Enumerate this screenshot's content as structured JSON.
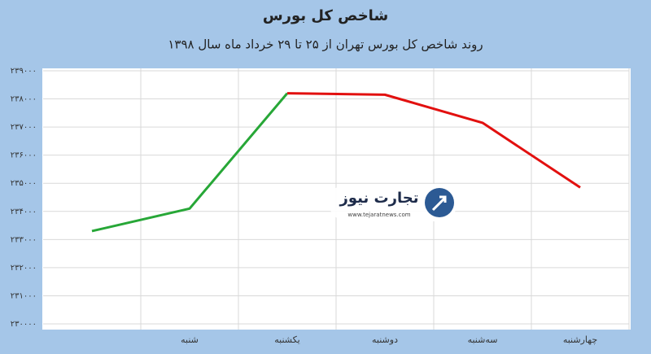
{
  "chart_data": {
    "type": "line",
    "title": "شاخص کل بورس",
    "subtitle": "روند شاخص کل بورس تهران از ۲۵ تا ۲۹ خرداد ماه سال ۱۳۹۸",
    "categories": [
      null,
      "شنبه",
      "یکشنبه",
      "دوشنبه",
      "سه‌شنبه",
      "چهارشنبه"
    ],
    "values": [
      233300,
      234100,
      238200,
      238150,
      237150,
      234850
    ],
    "up_color": "#27a737",
    "down_color": "#e2100f",
    "ylim": [
      230000,
      239000
    ],
    "yticks": [
      {
        "value": 230000,
        "label": "۲۳۰۰۰۰"
      },
      {
        "value": 231000,
        "label": "۲۳۱۰۰۰"
      },
      {
        "value": 232000,
        "label": "۲۳۲۰۰۰"
      },
      {
        "value": 233000,
        "label": "۲۳۳۰۰۰"
      },
      {
        "value": 234000,
        "label": "۲۳۴۰۰۰"
      },
      {
        "value": 235000,
        "label": "۲۳۵۰۰۰"
      },
      {
        "value": 236000,
        "label": "۲۳۶۰۰۰"
      },
      {
        "value": 237000,
        "label": "۲۳۷۰۰۰"
      },
      {
        "value": 238000,
        "label": "۲۳۸۰۰۰"
      },
      {
        "value": 239000,
        "label": "۲۳۹۰۰۰"
      }
    ],
    "grid": true,
    "watermark": {
      "brand": "تجارت نیوز",
      "url": "www.tejaratnews.com"
    }
  }
}
